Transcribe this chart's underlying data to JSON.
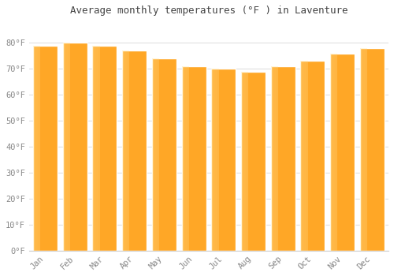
{
  "title": "Average monthly temperatures (°F ) in Laventure",
  "months": [
    "Jan",
    "Feb",
    "Mar",
    "Apr",
    "May",
    "Jun",
    "Jul",
    "Aug",
    "Sep",
    "Oct",
    "Nov",
    "Dec"
  ],
  "values": [
    79,
    80,
    79,
    77,
    74,
    71,
    70,
    69,
    71,
    73,
    76,
    78
  ],
  "bar_color_main": "#FFA726",
  "bar_color_light": "#FFD580",
  "bar_color_dark": "#F08C00",
  "ylim": [
    0,
    88
  ],
  "yticks": [
    0,
    10,
    20,
    30,
    40,
    50,
    60,
    70,
    80
  ],
  "ytick_labels": [
    "0°F",
    "10°F",
    "20°F",
    "30°F",
    "40°F",
    "50°F",
    "60°F",
    "70°F",
    "80°F"
  ],
  "background_color": "#FFFFFF",
  "grid_color": "#E0E0E0",
  "title_fontsize": 9,
  "tick_fontsize": 7.5,
  "title_color": "#444444",
  "tick_color": "#888888"
}
